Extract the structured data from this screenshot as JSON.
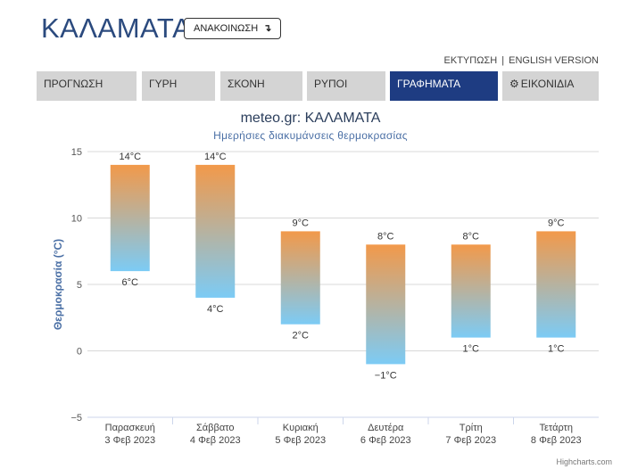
{
  "header": {
    "city": "ΚΑΛΑΜΑΤΑ",
    "announce_label": "ΑΝΑΚΟΙΝΩΣΗ",
    "announce_icon": "↴"
  },
  "links": {
    "print": "ΕΚΤΥΠΩΣΗ",
    "separator": "|",
    "english": "ENGLISH VERSION"
  },
  "tabs": [
    {
      "label": "ΠΡΟΓΝΩΣΗ",
      "active": false
    },
    {
      "label": "ΓΥΡΗ",
      "active": false
    },
    {
      "label": "ΣΚΟΝΗ",
      "active": false
    },
    {
      "label": "ΡΥΠΟΙ",
      "active": false
    },
    {
      "label": "ΓΡΑΦΗΜΑΤΑ",
      "active": true
    },
    {
      "label": "ΕΙΚΟΝΙΔΙΑ",
      "active": false,
      "icon": "gear-icon"
    }
  ],
  "chart_data": {
    "type": "bar",
    "subtype": "columnrange",
    "title": "meteo.gr: ΚΑΛΑΜΑΤΑ",
    "subtitle": "Ημερήσιες διακυμάνσεις θερμοκρασίας",
    "ylabel": "Θερμοκρασία (°C)",
    "xlabel": "",
    "ylim": [
      -5,
      15
    ],
    "yticks": [
      -5,
      0,
      5,
      10,
      15
    ],
    "grid": true,
    "categories": [
      [
        "Παρασκευή",
        "3 Φεβ 2023"
      ],
      [
        "Σάββατο",
        "4 Φεβ 2023"
      ],
      [
        "Κυριακή",
        "5 Φεβ 2023"
      ],
      [
        "Δευτέρα",
        "6 Φεβ 2023"
      ],
      [
        "Τρίτη",
        "7 Φεβ 2023"
      ],
      [
        "Τετάρτη",
        "8 Φεβ 2023"
      ]
    ],
    "low": [
      6,
      4,
      2,
      -1,
      1,
      1
    ],
    "high": [
      14,
      14,
      9,
      8,
      8,
      9
    ],
    "low_labels": [
      "6°C",
      "4°C",
      "2°C",
      "−1°C",
      "1°C",
      "1°C"
    ],
    "high_labels": [
      "14°C",
      "14°C",
      "9°C",
      "8°C",
      "8°C",
      "9°C"
    ],
    "colors": {
      "top": "#f2994a",
      "bottom": "#7ccbf5",
      "grid": "#d8d8d8",
      "axis_label": "#4a6fa5"
    }
  },
  "credits": "Highcharts.com"
}
